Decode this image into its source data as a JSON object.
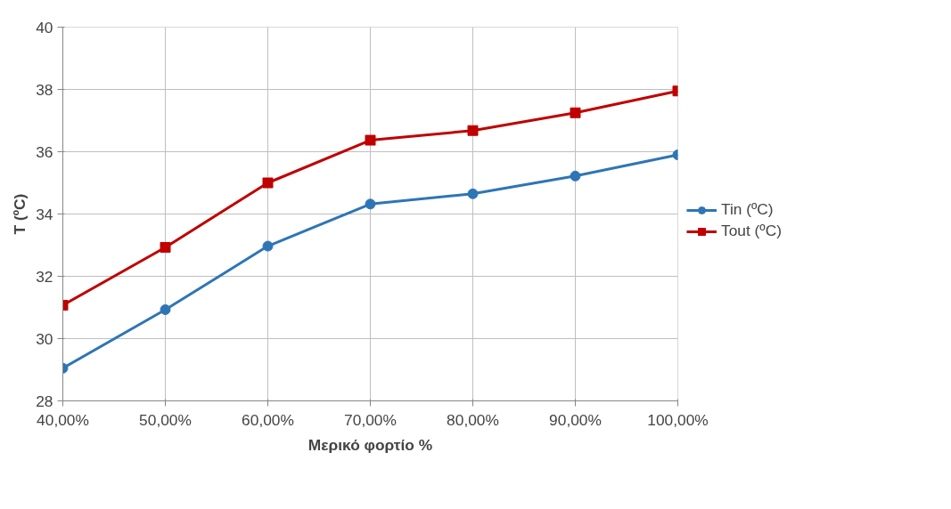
{
  "chart_data": {
    "type": "line",
    "xlabel": "Μερικό φορτίο %",
    "ylabel": "T (ºC)",
    "categories": [
      "40,00%",
      "50,00%",
      "60,00%",
      "70,00%",
      "80,00%",
      "90,00%",
      "100,00%"
    ],
    "series": [
      {
        "name": "Tin (ºC)",
        "color": "#2e75b6",
        "marker": "circle",
        "values": [
          29.05,
          30.93,
          32.97,
          34.32,
          34.65,
          35.22,
          35.9
        ]
      },
      {
        "name": "Tout (ºC)",
        "color": "#c00000",
        "marker": "square",
        "values": [
          31.07,
          32.93,
          35.0,
          36.37,
          36.68,
          37.25,
          37.95
        ]
      }
    ],
    "ylim": [
      28,
      40
    ],
    "yticks": [
      28,
      30,
      32,
      34,
      36,
      38,
      40
    ],
    "grid": true,
    "legend": "right",
    "line_style": "solid"
  }
}
